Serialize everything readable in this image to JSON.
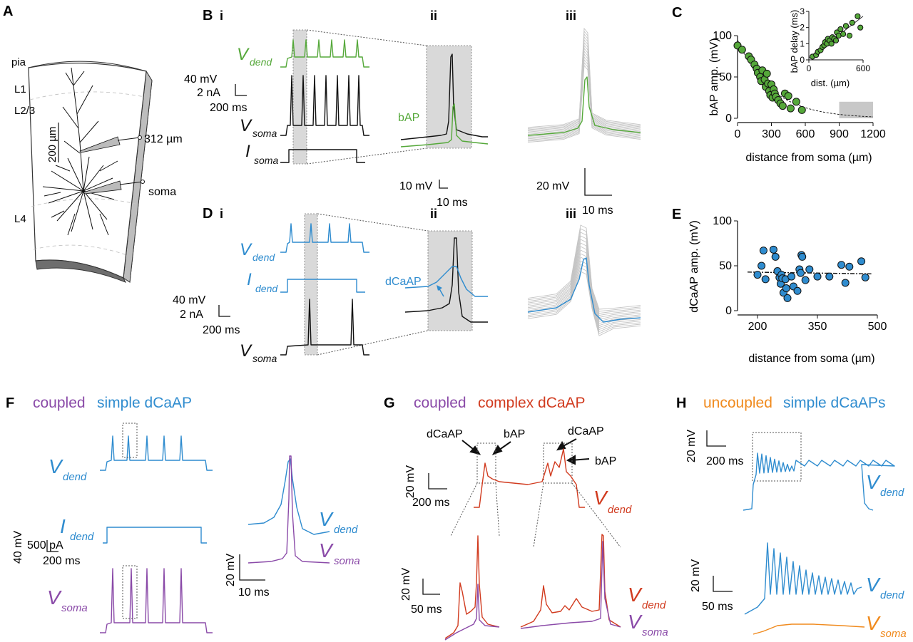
{
  "panel_labels": {
    "A": "A",
    "B": "B",
    "Bi": "i",
    "Bii": "ii",
    "Biii": "iii",
    "C": "C",
    "D": "D",
    "Di": "i",
    "Dii": "ii",
    "Diii": "iii",
    "E": "E",
    "F": "F",
    "G": "G",
    "H": "H"
  },
  "colors": {
    "green": "#55a83a",
    "blue": "#2f8ccf",
    "purple": "#8a4aa8",
    "red": "#d13b1f",
    "orange": "#f08a1d",
    "black": "#111111",
    "grey_trace": "#c4c4c4",
    "shade": "#d9d9d9"
  },
  "panelA": {
    "pia": "pia",
    "L1": "L1",
    "L23": "L2/3",
    "L4": "L4",
    "scale": "200 µm",
    "electrode1": "312 µm",
    "electrode2": "soma"
  },
  "panelB": {
    "vdend_main": "V",
    "vdend_sub": "dend",
    "vsoma_main": "V",
    "vsoma_sub": "soma",
    "isoma_main": "I",
    "isoma_sub": "soma",
    "scale_mv": "40 mV",
    "scale_na": "2 nA",
    "scale_ms": "200 ms",
    "bap": "bAP",
    "ii_scale_mv": "10 mV",
    "ii_scale_ms": "10 ms",
    "iii_scale_mv": "20 mV",
    "iii_scale_ms": "10 ms"
  },
  "panelD": {
    "vdend_main": "V",
    "vdend_sub": "dend",
    "idend_main": "I",
    "idend_sub": "dend",
    "vsoma_main": "V",
    "vsoma_sub": "soma",
    "scale_mv": "40 mV",
    "scale_na": "2 nA",
    "scale_ms": "200 ms",
    "dcaap": "dCaAP"
  },
  "panelF": {
    "title_a": "coupled",
    "title_b": "simple dCaAP",
    "vdend_main": "V",
    "vdend_sub": "dend",
    "idend_main": "I",
    "idend_sub": "dend",
    "vsoma_main": "V",
    "vsoma_sub": "soma",
    "scale_mv": "40 mV",
    "scale_pa": "500 pA",
    "scale_ms": "200 ms",
    "inset_mv": "20 mV",
    "inset_ms": "10 ms"
  },
  "panelG": {
    "title_a": "coupled",
    "title_b": "complex dCaAP",
    "dcaap1": "dCaAP",
    "bap1": "bAP",
    "dcaap2": "dCaAP",
    "bap2": "bAP",
    "vdend_main": "V",
    "vdend_sub": "dend",
    "vsoma_main": "V",
    "vsoma_sub": "soma",
    "scale_mv": "20 mV",
    "scale_ms": "200 ms",
    "zoom_mv": "20 mV",
    "zoom_ms": "50 ms"
  },
  "panelH": {
    "title_a": "uncoupled",
    "title_b": "simple dCaAPs",
    "vdend_main": "V",
    "vdend_sub": "dend",
    "vsoma_main": "V",
    "vsoma_sub": "soma",
    "scale_mv": "20 mV",
    "scale_ms": "200 ms",
    "zoom_mv": "20 mV",
    "zoom_ms": "50 ms"
  },
  "chart_data": [
    {
      "id": "C",
      "type": "scatter",
      "title": "",
      "xlabel": "distance from soma (µm)",
      "ylabel": "bAP amp. (mV)",
      "xlim": [
        0,
        1200
      ],
      "ylim": [
        0,
        100
      ],
      "xticks": [
        0,
        300,
        600,
        900,
        1200
      ],
      "yticks": [
        0,
        50,
        100
      ],
      "fit": "exponential decay",
      "shaded_region": [
        900,
        1200
      ],
      "points": [
        [
          0,
          88
        ],
        [
          40,
          83
        ],
        [
          100,
          75
        ],
        [
          120,
          71
        ],
        [
          150,
          65
        ],
        [
          170,
          60
        ],
        [
          180,
          55
        ],
        [
          200,
          50
        ],
        [
          210,
          45
        ],
        [
          220,
          58
        ],
        [
          240,
          47
        ],
        [
          250,
          38
        ],
        [
          260,
          54
        ],
        [
          270,
          42
        ],
        [
          280,
          33
        ],
        [
          290,
          28
        ],
        [
          300,
          41
        ],
        [
          310,
          25
        ],
        [
          320,
          35
        ],
        [
          330,
          30
        ],
        [
          340,
          26
        ],
        [
          360,
          22
        ],
        [
          380,
          18
        ],
        [
          400,
          15
        ],
        [
          420,
          30
        ],
        [
          450,
          27
        ],
        [
          470,
          12
        ],
        [
          520,
          20
        ],
        [
          570,
          10
        ]
      ],
      "inset": {
        "xlabel": "dist. (µm)",
        "ylabel": "bAP delay (ms)",
        "xlim": [
          0,
          600
        ],
        "ylim": [
          0,
          3
        ],
        "xticks": [
          0,
          600
        ],
        "yticks": [
          0,
          1,
          2,
          3
        ],
        "fit": "linear",
        "points": [
          [
            40,
            0.2
          ],
          [
            80,
            0.3
          ],
          [
            100,
            0.5
          ],
          [
            130,
            0.6
          ],
          [
            150,
            0.8
          ],
          [
            170,
            0.9
          ],
          [
            180,
            1.1
          ],
          [
            200,
            1.0
          ],
          [
            210,
            1.3
          ],
          [
            230,
            1.2
          ],
          [
            250,
            1.0
          ],
          [
            260,
            1.4
          ],
          [
            280,
            1.3
          ],
          [
            300,
            1.2
          ],
          [
            310,
            1.7
          ],
          [
            330,
            1.5
          ],
          [
            350,
            1.9
          ],
          [
            380,
            1.6
          ],
          [
            410,
            2.1
          ],
          [
            450,
            1.5
          ],
          [
            480,
            2.3
          ],
          [
            540,
            2.7
          ],
          [
            570,
            2.0
          ]
        ]
      }
    },
    {
      "id": "E",
      "type": "scatter",
      "title": "",
      "xlabel": "distance from soma (µm)",
      "ylabel": "dCaAP amp. (mV)",
      "xlim": [
        150,
        500
      ],
      "ylim": [
        0,
        100
      ],
      "xticks": [
        200,
        350,
        500
      ],
      "yticks": [
        0,
        50,
        100
      ],
      "fit": "flat linear (dash-dot)",
      "points": [
        [
          200,
          40
        ],
        [
          210,
          50
        ],
        [
          215,
          67
        ],
        [
          220,
          35
        ],
        [
          240,
          68
        ],
        [
          245,
          60
        ],
        [
          250,
          44
        ],
        [
          255,
          37
        ],
        [
          258,
          30
        ],
        [
          260,
          40
        ],
        [
          262,
          36
        ],
        [
          265,
          20
        ],
        [
          270,
          35
        ],
        [
          272,
          25
        ],
        [
          275,
          14
        ],
        [
          285,
          38
        ],
        [
          290,
          27
        ],
        [
          300,
          22
        ],
        [
          305,
          46
        ],
        [
          308,
          42
        ],
        [
          310,
          62
        ],
        [
          312,
          60
        ],
        [
          320,
          34
        ],
        [
          330,
          46
        ],
        [
          350,
          38
        ],
        [
          380,
          38
        ],
        [
          410,
          51
        ],
        [
          420,
          31
        ],
        [
          430,
          49
        ],
        [
          460,
          55
        ],
        [
          470,
          37
        ]
      ]
    }
  ]
}
